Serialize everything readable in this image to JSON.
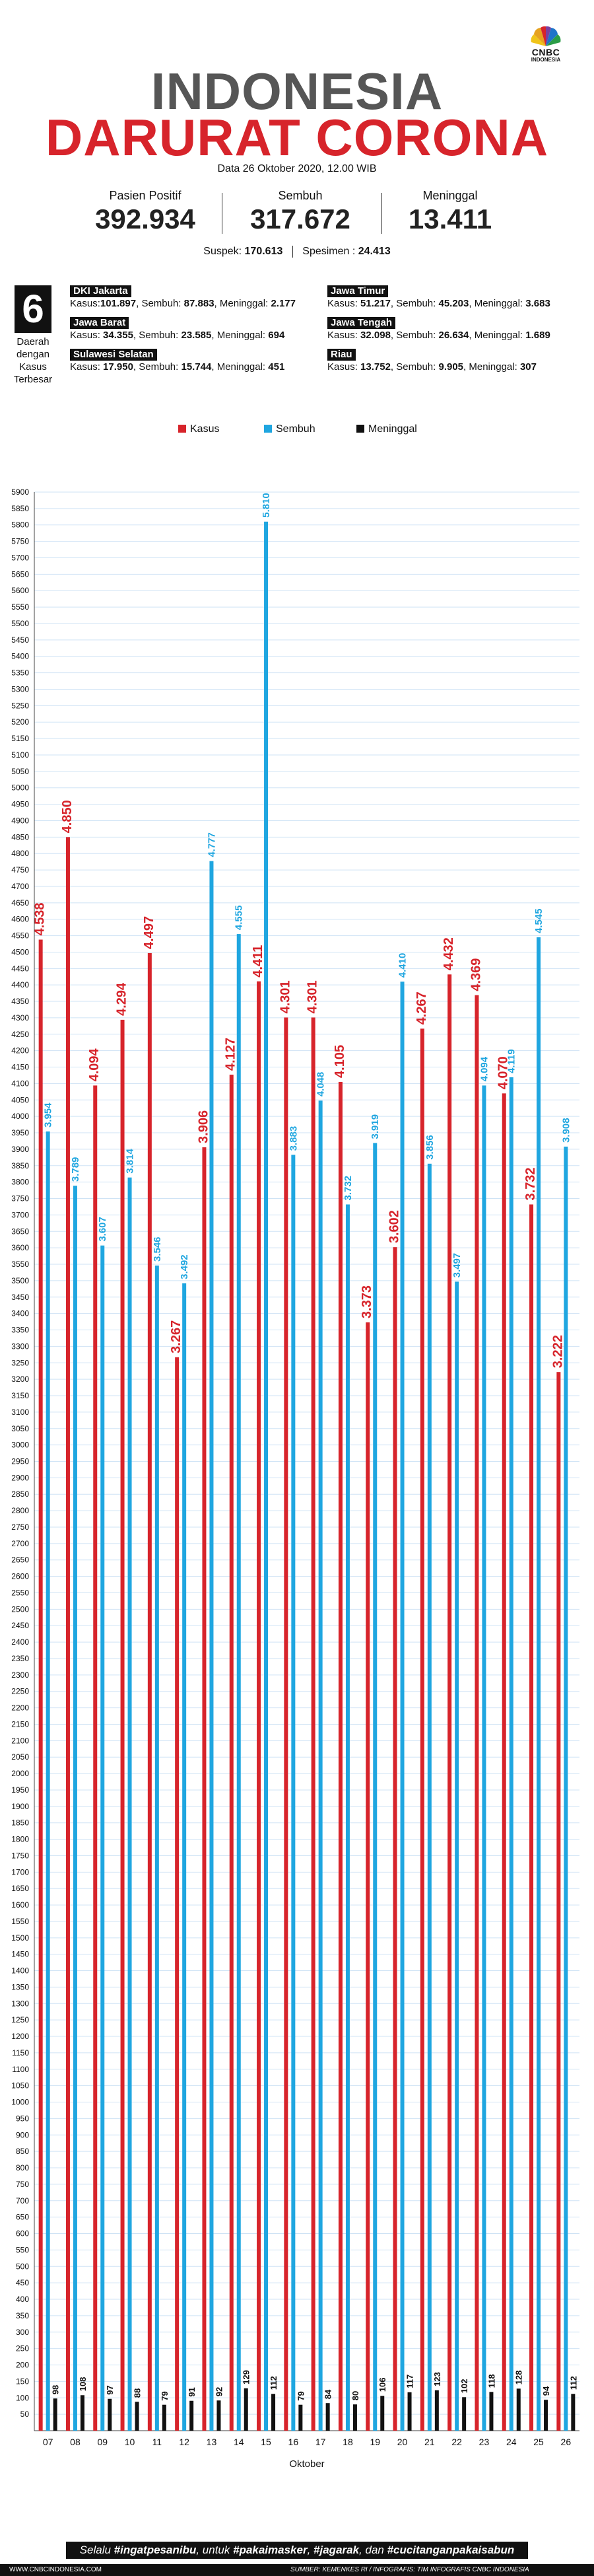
{
  "brand": {
    "logo_text": "CNBC",
    "logo_sub": "INDONESIA"
  },
  "header": {
    "title_line1": "INDONESIA",
    "title_line2": "DARURAT CORONA",
    "date": "Data 26 Oktober 2020, 12.00 WIB"
  },
  "stats": [
    {
      "label": "Pasien Positif",
      "value": "392.934"
    },
    {
      "label": "Sembuh",
      "value": "317.672"
    },
    {
      "label": "Meninggal",
      "value": "13.411"
    }
  ],
  "secondary": {
    "suspek_label": "Suspek:",
    "suspek_value": "170.613",
    "spesimen_label": "Spesimen :",
    "spesimen_value": "24.413"
  },
  "regions_box": {
    "number": "6",
    "caption_lines": [
      "Daerah",
      "dengan",
      "Kasus",
      "Terbesar"
    ]
  },
  "regions": [
    {
      "name": "DKI Jakarta",
      "k_label": "Kasus:",
      "kasus": "101.897",
      "s_label": "Sembuh:",
      "sembuh": "87.883",
      "m_label": "Meninggal:",
      "meninggal": "2.177"
    },
    {
      "name": "Jawa Timur",
      "k_label": "Kasus:",
      "kasus": "51.217",
      "s_label": "Sembuh:",
      "sembuh": "45.203",
      "m_label": "Meninggal:",
      "meninggal": "3.683"
    },
    {
      "name": "Jawa Barat",
      "k_label": "Kasus:",
      "kasus": "34.355",
      "s_label": "Sembuh:",
      "sembuh": "23.585",
      "m_label": "Meninggal:",
      "meninggal": "694"
    },
    {
      "name": "Jawa Tengah",
      "k_label": "Kasus:",
      "kasus": "32.098",
      "s_label": "Sembuh:",
      "sembuh": "26.634",
      "m_label": "Meninggal:",
      "meninggal": "1.689"
    },
    {
      "name": "Sulawesi Selatan",
      "k_label": "Kasus:",
      "kasus": "17.950",
      "s_label": "Sembuh:",
      "sembuh": "15.744",
      "m_label": "Meninggal:",
      "meninggal": "451"
    },
    {
      "name": "Riau",
      "k_label": "Kasus:",
      "kasus": "13.752",
      "s_label": "Sembuh:",
      "sembuh": "9.905",
      "m_label": "Meninggal:",
      "meninggal": "307"
    }
  ],
  "colors": {
    "kasus": "#d7242b",
    "sembuh": "#1fa6e0",
    "meninggal": "#111111",
    "title_gray": "#565656",
    "grid": "#cfe3f5"
  },
  "chart_data": {
    "type": "bar",
    "xlabel": "Oktober",
    "ylabel": "",
    "ylim": [
      0,
      5900
    ],
    "ytick_step": 50,
    "grid": true,
    "legend_position": "top",
    "categories": [
      "07",
      "08",
      "09",
      "10",
      "11",
      "12",
      "13",
      "14",
      "15",
      "16",
      "17",
      "18",
      "19",
      "20",
      "21",
      "22",
      "23",
      "24",
      "25",
      "26"
    ],
    "series": [
      {
        "name": "Kasus",
        "color": "#d7242b",
        "values": [
          4538,
          4850,
          4094,
          4294,
          4497,
          3267,
          3906,
          4127,
          4411,
          4301,
          4301,
          4105,
          3373,
          3602,
          4267,
          4432,
          4369,
          4070,
          3732,
          3222
        ],
        "labels": [
          "4.538",
          "4.850",
          "4.094",
          "4.294",
          "4.497",
          "3.267",
          "3.906",
          "4.127",
          "4.411",
          "4.301",
          "4.301",
          "4.105",
          "3.373",
          "3.602",
          "4.267",
          "4.432",
          "4.369",
          "4.070",
          "3.732",
          "3.222"
        ]
      },
      {
        "name": "Sembuh",
        "color": "#1fa6e0",
        "values": [
          3954,
          3789,
          3607,
          3814,
          3546,
          3492,
          4777,
          4555,
          5810,
          3883,
          4048,
          3732,
          3919,
          4410,
          3856,
          3497,
          4094,
          4119,
          4545,
          3908
        ],
        "labels": [
          "3.954",
          "3.789",
          "3.607",
          "3.814",
          "3.546",
          "3.492",
          "4.777",
          "4.555",
          "5.810",
          "3.883",
          "4.048",
          "3.732",
          "3.919",
          "4.410",
          "3.856",
          "3.497",
          "4.094",
          "4.119",
          "4.545",
          "3.908"
        ]
      },
      {
        "name": "Meninggal",
        "color": "#111111",
        "values": [
          98,
          108,
          97,
          88,
          79,
          91,
          92,
          129,
          112,
          79,
          84,
          80,
          106,
          117,
          123,
          102,
          118,
          128,
          94,
          112
        ],
        "labels": [
          "98",
          "108",
          "97",
          "88",
          "79",
          "91",
          "92",
          "129",
          "112",
          "79",
          "84",
          "80",
          "106",
          "117",
          "123",
          "102",
          "118",
          "128",
          "94",
          "112"
        ]
      }
    ]
  },
  "footer": {
    "slogan_lead": "Selalu ",
    "slogan_b1": "#ingatpesanibu",
    "slogan_mid1": ", untuk ",
    "slogan_b2": "#pakaimasker",
    "slogan_sep1": ", ",
    "slogan_b3": "#jagarak",
    "slogan_sep2": ", dan ",
    "slogan_b4": "#cucitanganpakaisabun",
    "website": "WWW.CNBCINDONESIA.COM",
    "source": "SUMBER: KEMENKES RI / INFOGRAFIS: TIM INFOGRAFIS CNBC INDONESIA"
  }
}
